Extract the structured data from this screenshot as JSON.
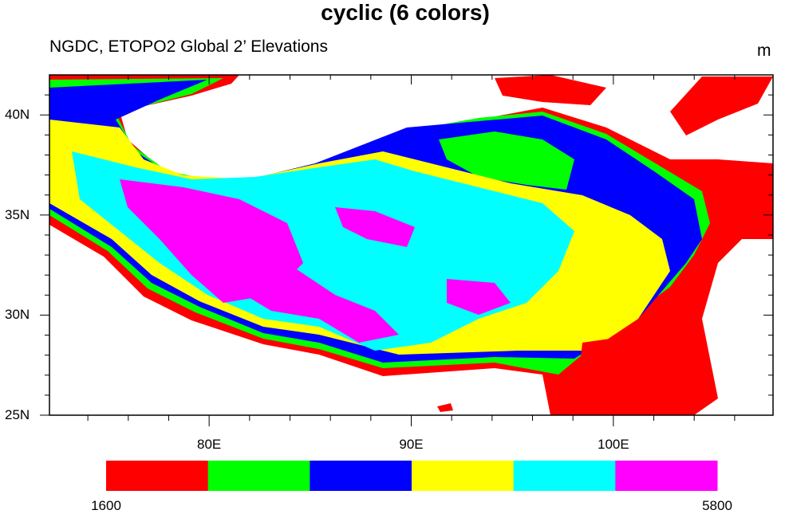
{
  "title": "cyclic (6 colors)",
  "left_subtitle": "NGDC, ETOPO2 Global 2’ Elevations",
  "right_subtitle": "m",
  "map": {
    "lon_range": [
      72.1,
      107.9
    ],
    "lat_range": [
      25,
      42
    ],
    "lat_labels": [
      {
        "v": 40,
        "label": "40N"
      },
      {
        "v": 35,
        "label": "35N"
      },
      {
        "v": 30,
        "label": "30N"
      },
      {
        "v": 25,
        "label": "25N"
      }
    ],
    "lon_labels": [
      {
        "v": 80,
        "label": "80E"
      },
      {
        "v": 90,
        "label": "90E"
      },
      {
        "v": 100,
        "label": "100E"
      }
    ]
  },
  "colorbar": {
    "colors": [
      "#ff0000",
      "#00ff00",
      "#0000ff",
      "#ffff00",
      "#00ffff",
      "#ff00ff"
    ],
    "min_label": "1600",
    "max_label": "5800"
  }
}
